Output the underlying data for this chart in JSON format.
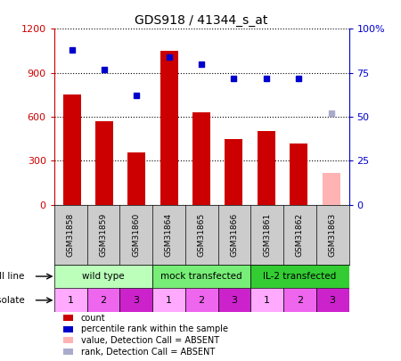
{
  "title": "GDS918 / 41344_s_at",
  "samples": [
    "GSM31858",
    "GSM31859",
    "GSM31860",
    "GSM31864",
    "GSM31865",
    "GSM31866",
    "GSM31861",
    "GSM31862",
    "GSM31863"
  ],
  "counts": [
    750,
    570,
    360,
    1050,
    630,
    450,
    500,
    420,
    220
  ],
  "count_absent": [
    false,
    false,
    false,
    false,
    false,
    false,
    false,
    false,
    true
  ],
  "percentile_ranks": [
    88,
    77,
    62,
    84,
    80,
    72,
    72,
    72,
    52
  ],
  "rank_absent": [
    false,
    false,
    false,
    false,
    false,
    false,
    false,
    false,
    true
  ],
  "bar_color_normal": "#cc0000",
  "bar_color_absent": "#ffb3b3",
  "dot_color_normal": "#0000cc",
  "dot_color_absent": "#aaaacc",
  "ylim_left": [
    0,
    1200
  ],
  "ylim_right": [
    0,
    100
  ],
  "yticks_left": [
    0,
    300,
    600,
    900,
    1200
  ],
  "ytick_labels_left": [
    "0",
    "300",
    "600",
    "900",
    "1200"
  ],
  "yticks_right": [
    0,
    25,
    50,
    75,
    100
  ],
  "ytick_labels_right": [
    "0",
    "25",
    "50",
    "75",
    "100%"
  ],
  "cell_line_groups": [
    {
      "label": "wild type",
      "start": 0,
      "end": 3,
      "color": "#bbffbb"
    },
    {
      "label": "mock transfected",
      "start": 3,
      "end": 6,
      "color": "#77ee77"
    },
    {
      "label": "IL-2 transfected",
      "start": 6,
      "end": 9,
      "color": "#33cc33"
    }
  ],
  "isolate_values": [
    1,
    2,
    3,
    1,
    2,
    3,
    1,
    2,
    3
  ],
  "isolate_colors": [
    "#ffaaff",
    "#ee66ee",
    "#cc22cc",
    "#ffaaff",
    "#ee66ee",
    "#cc22cc",
    "#ffaaff",
    "#ee66ee",
    "#cc22cc"
  ],
  "sample_row_bg": "#cccccc",
  "cell_line_row_label": "cell line",
  "isolate_row_label": "isolate",
  "legend_items": [
    {
      "color": "#cc0000",
      "label": "count"
    },
    {
      "color": "#0000cc",
      "label": "percentile rank within the sample"
    },
    {
      "color": "#ffb3b3",
      "label": "value, Detection Call = ABSENT"
    },
    {
      "color": "#aaaacc",
      "label": "rank, Detection Call = ABSENT"
    }
  ],
  "left_axis_color": "#cc0000",
  "right_axis_color": "#0000cc"
}
